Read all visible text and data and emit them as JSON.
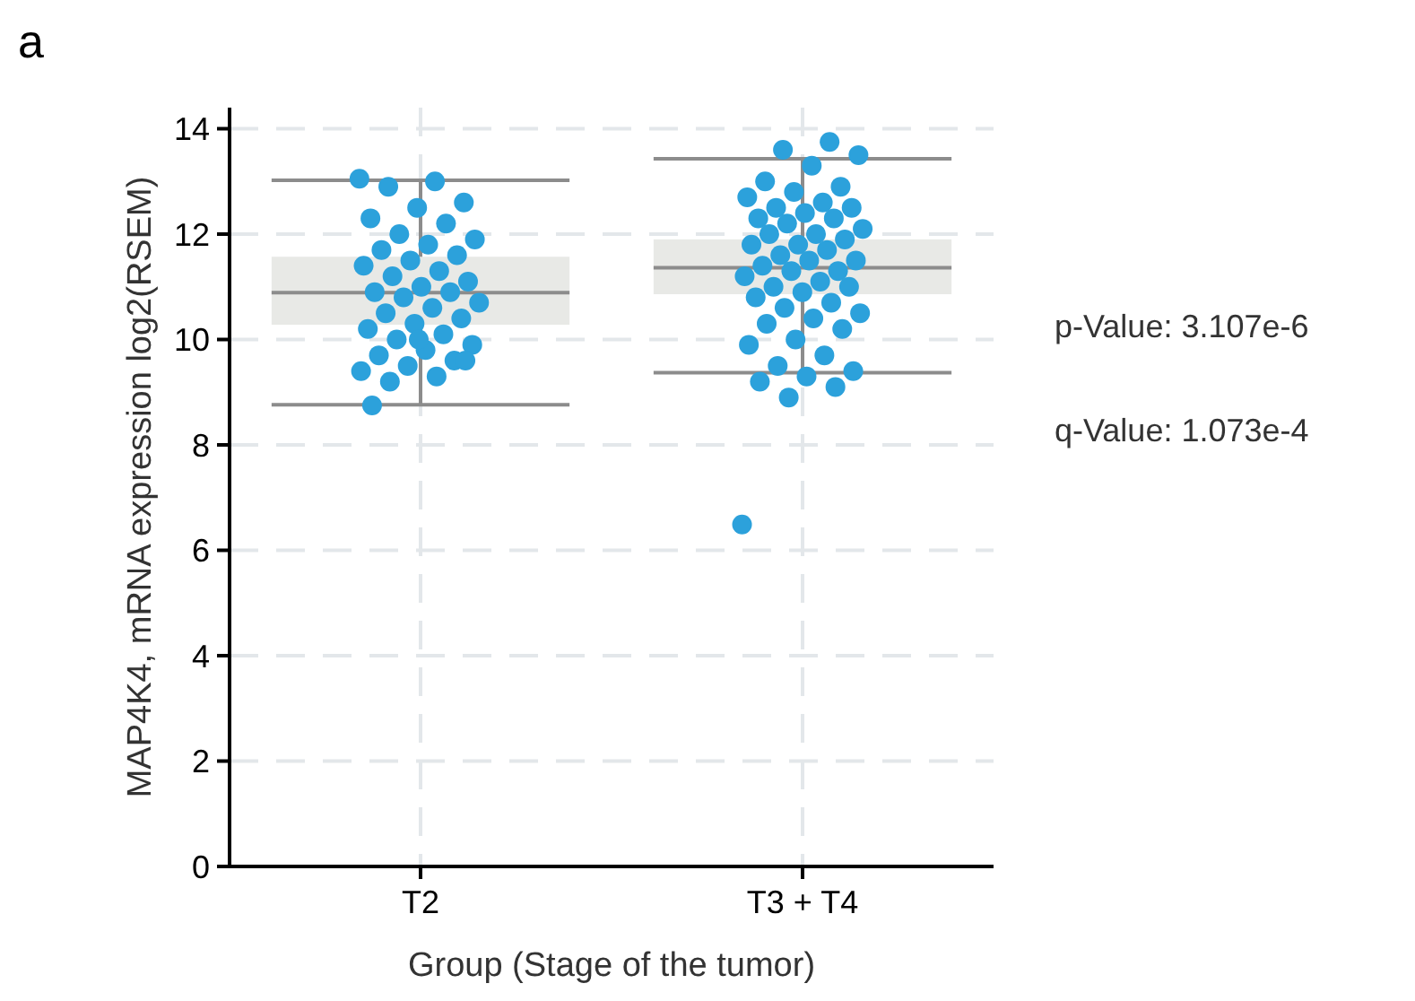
{
  "chart_data": {
    "type": "box",
    "xlabel": "Group (Stage of the tumor)",
    "ylabel": "MAP4K4, mRNA expression log2(RSEM)",
    "categories": [
      "T2",
      "T3 + T4"
    ],
    "ylim": [
      0,
      14.4
    ],
    "yticks": [
      0,
      2,
      4,
      6,
      8,
      10,
      12,
      14
    ],
    "grid": true,
    "boxes": [
      {
        "low": 8.76,
        "q1": 10.28,
        "median": 10.89,
        "q3": 11.57,
        "high": 13.02
      },
      {
        "low": 9.37,
        "q1": 10.86,
        "median": 11.36,
        "q3": 11.9,
        "high": 13.43
      }
    ],
    "series": [
      {
        "type": "scatter",
        "color": "#2ca1db",
        "marker": "circle",
        "x": [
          "T2",
          "T2",
          "T2",
          "T2",
          "T2",
          "T2",
          "T2",
          "T2",
          "T2",
          "T2",
          "T2",
          "T2",
          "T2",
          "T2",
          "T2",
          "T2",
          "T2",
          "T2",
          "T2",
          "T2",
          "T2",
          "T2",
          "T2",
          "T2",
          "T2",
          "T2",
          "T2",
          "T2",
          "T2",
          "T2",
          "T2",
          "T2",
          "T2",
          "T2",
          "T2",
          "T2",
          "T2",
          "T2",
          "T2",
          "T2",
          "T3 + T4",
          "T3 + T4",
          "T3 + T4",
          "T3 + T4",
          "T3 + T4",
          "T3 + T4",
          "T3 + T4",
          "T3 + T4",
          "T3 + T4",
          "T3 + T4",
          "T3 + T4",
          "T3 + T4",
          "T3 + T4",
          "T3 + T4",
          "T3 + T4",
          "T3 + T4",
          "T3 + T4",
          "T3 + T4",
          "T3 + T4",
          "T3 + T4",
          "T3 + T4",
          "T3 + T4",
          "T3 + T4",
          "T3 + T4",
          "T3 + T4",
          "T3 + T4",
          "T3 + T4",
          "T3 + T4",
          "T3 + T4",
          "T3 + T4",
          "T3 + T4",
          "T3 + T4",
          "T3 + T4",
          "T3 + T4",
          "T3 + T4",
          "T3 + T4",
          "T3 + T4",
          "T3 + T4",
          "T3 + T4",
          "T3 + T4",
          "T3 + T4",
          "T3 + T4",
          "T3 + T4",
          "T3 + T4",
          "T3 + T4",
          "T3 + T4",
          "T3 + T4",
          "T3 + T4",
          "T3 + T4",
          "T3 + T4"
        ],
        "values": [
          13.05,
          13.0,
          12.9,
          12.6,
          12.5,
          12.3,
          12.2,
          12.0,
          11.9,
          11.8,
          11.7,
          11.6,
          11.5,
          11.4,
          11.3,
          11.2,
          11.1,
          11.0,
          10.9,
          10.9,
          10.8,
          10.7,
          10.6,
          10.5,
          10.4,
          10.3,
          10.2,
          10.1,
          10.0,
          9.9,
          9.8,
          9.7,
          9.6,
          9.5,
          9.4,
          9.3,
          9.2,
          9.6,
          10.0,
          8.75,
          13.75,
          13.6,
          13.5,
          13.3,
          13.0,
          12.9,
          12.8,
          12.7,
          12.6,
          12.5,
          12.5,
          12.4,
          12.3,
          12.3,
          12.2,
          12.1,
          12.0,
          12.0,
          11.9,
          11.8,
          11.8,
          11.7,
          11.6,
          11.5,
          11.5,
          11.4,
          11.3,
          11.3,
          11.2,
          11.1,
          11.0,
          11.0,
          10.9,
          10.8,
          10.7,
          10.6,
          10.5,
          10.4,
          10.3,
          10.2,
          10.0,
          9.9,
          9.7,
          9.5,
          9.4,
          9.3,
          9.2,
          9.1,
          8.9,
          6.49
        ]
      }
    ],
    "annotations": [
      "a",
      "p-Value: 3.107e-6",
      "q-Value: 1.073e-4"
    ]
  }
}
